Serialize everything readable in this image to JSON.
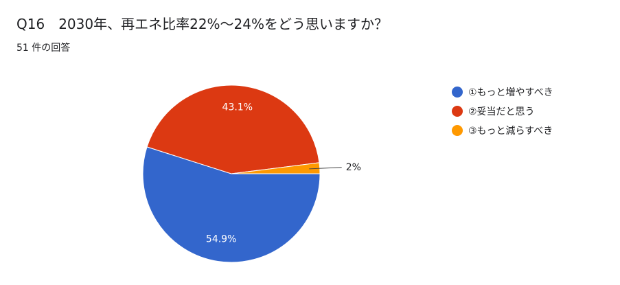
{
  "question": {
    "title": "Q16　2030年、再エネ比率22%〜24%をどう思いますか？",
    "response_count": "51 件の回答"
  },
  "chart_data": {
    "type": "pie",
    "categories": [
      "①もっと増やすべき",
      "②妥当だと思う",
      "③もっと減らすべき"
    ],
    "values": [
      54.9,
      43.1,
      2
    ],
    "labels": [
      "54.9%",
      "43.1%",
      "2%"
    ],
    "colors": [
      "#3366cc",
      "#dc3912",
      "#ff9900"
    ],
    "legend": "right"
  }
}
